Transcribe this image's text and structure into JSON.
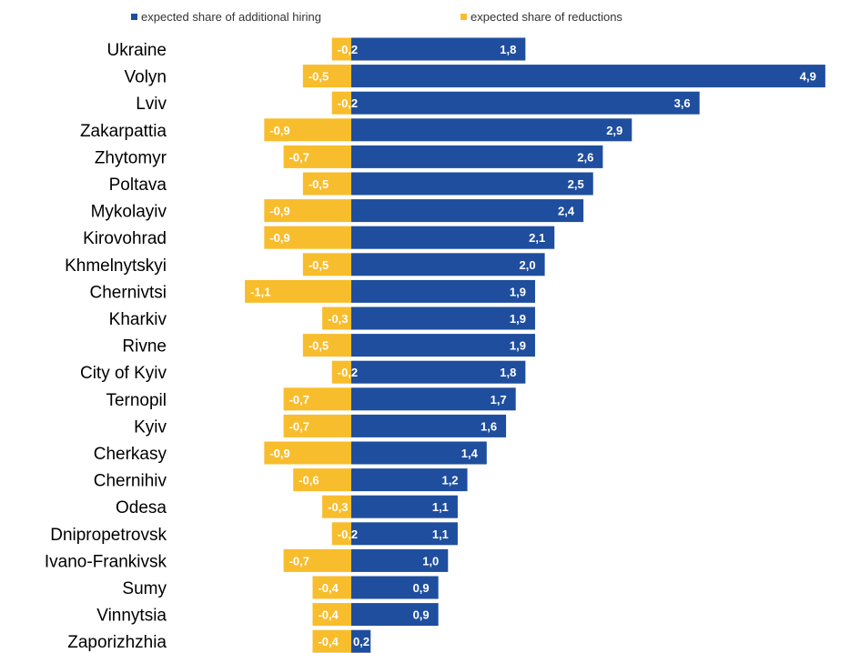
{
  "chart_data": {
    "type": "bar",
    "orientation": "horizontal",
    "categories": [
      "Ukraine",
      "Volyn",
      "Lviv",
      "Zakarpattia",
      "Zhytomyr",
      "Poltava",
      "Mykolayiv",
      "Kirovohrad",
      "Khmelnytskyi",
      "Chernivtsi",
      "Kharkiv",
      "Rivne",
      "City of Kyiv",
      "Ternopil",
      "Kyiv",
      "Cherkasy",
      "Chernihiv",
      "Odesa",
      "Dnipropetrovsk",
      "Ivano-Frankivsk",
      "Sumy",
      "Vinnytsia",
      "Zaporizhzhia"
    ],
    "series": [
      {
        "name": "expected share of additional hiring",
        "color": "#1f4e9e",
        "values": [
          1.8,
          4.9,
          3.6,
          2.9,
          2.6,
          2.5,
          2.4,
          2.1,
          2.0,
          1.9,
          1.9,
          1.9,
          1.8,
          1.7,
          1.6,
          1.4,
          1.2,
          1.1,
          1.1,
          1.0,
          0.9,
          0.9,
          0.2
        ],
        "labels": [
          "1,8",
          "4,9",
          "3,6",
          "2,9",
          "2,6",
          "2,5",
          "2,4",
          "2,1",
          "2,0",
          "1,9",
          "1,9",
          "1,9",
          "1,8",
          "1,7",
          "1,6",
          "1,4",
          "1,2",
          "1,1",
          "1,1",
          "1,0",
          "0,9",
          "0,9",
          "0,2"
        ]
      },
      {
        "name": "expected share of reductions",
        "color": "#f8bd2c",
        "values": [
          -0.2,
          -0.5,
          -0.2,
          -0.9,
          -0.7,
          -0.5,
          -0.9,
          -0.9,
          -0.5,
          -1.1,
          -0.3,
          -0.5,
          -0.2,
          -0.7,
          -0.7,
          -0.9,
          -0.6,
          -0.3,
          -0.2,
          -0.7,
          -0.4,
          -0.4,
          -0.4
        ],
        "labels": [
          "-0,2",
          "-0,5",
          "-0,2",
          "-0,9",
          "-0,7",
          "-0,5",
          "-0,9",
          "-0,9",
          "-0,5",
          "-1,1",
          "-0,3",
          "-0,5",
          "-0,2",
          "-0,7",
          "-0,7",
          "-0,9",
          "-0,6",
          "-0,3",
          "-0,2",
          "-0,7",
          "-0,4",
          "-0,4",
          "-0,4"
        ]
      }
    ],
    "xlim": [
      -1.1,
      4.9
    ],
    "legend_position": "top",
    "grid": false
  }
}
